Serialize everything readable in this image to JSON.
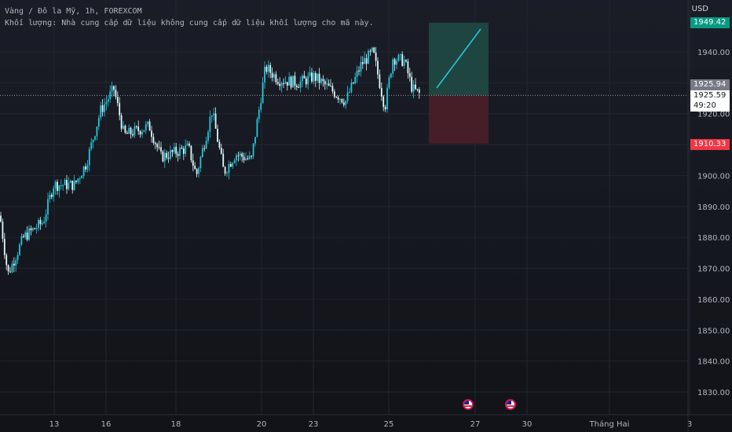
{
  "header": {
    "symbol_line": "Vàng / Đô la Mỹ, 1h, FOREXCOM",
    "volume_line": "Khối lượng: Nhà cung cấp dữ liệu không cung cấp dữ liệu khối lượng cho mã này."
  },
  "currency": "USD",
  "colors": {
    "up": "#26c6da",
    "down": "#e0f7fa",
    "grid": "#23262f",
    "profit": "#1f4a44",
    "loss": "#4a1f28",
    "target": "#089981",
    "stop": "#f23645"
  },
  "y_axis": {
    "ticks": [
      1830,
      1840,
      1850,
      1860,
      1870,
      1880,
      1890,
      1900,
      1910,
      1920,
      1930,
      1940
    ],
    "labels": [
      "1830.00",
      "1840.00",
      "1850.00",
      "1860.00",
      "1870.00",
      "1880.00",
      "1890.00",
      "1900.00",
      "1910.00",
      "1920.00",
      "1930.00",
      "1940.00"
    ]
  },
  "x_axis": {
    "labels": [
      "13",
      "16",
      "18",
      "20",
      "23",
      "25",
      "27",
      "30",
      "Tháng Hai",
      "3"
    ]
  },
  "price_tags": {
    "target": "1949.42",
    "entry": "1925.94",
    "current": "1925.59",
    "countdown": "49:20",
    "stop": "1910.33"
  },
  "position": {
    "entry": 1925.94,
    "target": 1949.42,
    "stop": 1910.33
  },
  "chart_data": {
    "type": "line",
    "title": "",
    "xlabel": "",
    "ylabel": "",
    "ylim": [
      1825,
      1955
    ],
    "x": [
      "13",
      "16",
      "18",
      "20",
      "23",
      "25"
    ],
    "series": [
      {
        "values": [
          1885,
          1923,
          1911,
          1932,
          1934,
          1926
        ]
      }
    ]
  }
}
